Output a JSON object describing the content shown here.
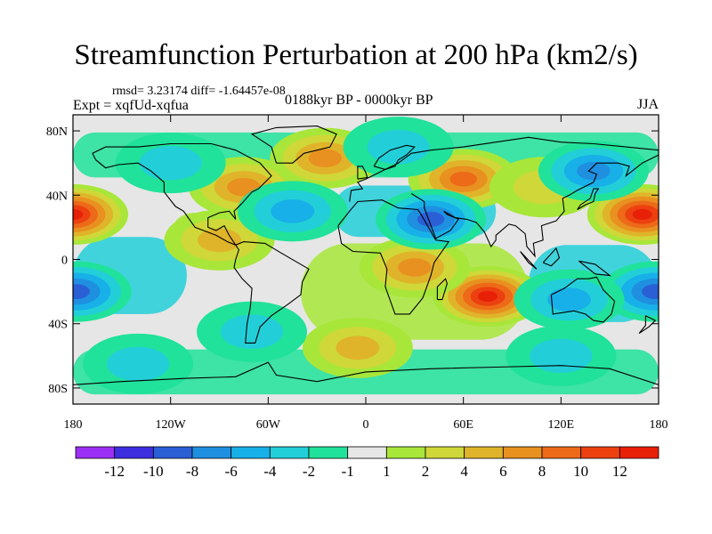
{
  "chart_data": {
    "type": "heatmap",
    "title": "Streamfunction Perturbation at 200 hPa (km2/s)",
    "stats_text": "rmsd= 3.23174 diff= -1.64457e-08",
    "experiment_text": "Expt = xqfUd-xqfua",
    "period_text": "0188kyr BP - 0000kyr BP",
    "season_text": "JJA",
    "x_ticks": [
      "180",
      "120W",
      "60W",
      "0",
      "60E",
      "120E",
      "180"
    ],
    "y_ticks": [
      "80N",
      "40N",
      "0",
      "40S",
      "80S"
    ],
    "xlim": [
      -180,
      180
    ],
    "ylim": [
      -90,
      90
    ],
    "colorbar": {
      "labels": [
        "-12",
        "-10",
        "-8",
        "-6",
        "-4",
        "-2",
        "-1",
        "1",
        "2",
        "4",
        "6",
        "8",
        "10",
        "12"
      ],
      "colors": [
        "#9b30f5",
        "#3d2ee0",
        "#2a5fd6",
        "#1f8fe0",
        "#18b0e8",
        "#22cfd8",
        "#20e29a",
        "#e6e6e6",
        "#a8e63a",
        "#cfd838",
        "#e0b42a",
        "#e89020",
        "#ec6a18",
        "#ec4010",
        "#e82008"
      ]
    },
    "anomaly_centers": [
      {
        "lon": -180,
        "lat": 28,
        "level": 13
      },
      {
        "lon": 170,
        "lat": 28,
        "level": 13
      },
      {
        "lon": 75,
        "lat": -23,
        "level": 13
      },
      {
        "lon": -75,
        "lat": 45,
        "level": 10
      },
      {
        "lon": -25,
        "lat": 63,
        "level": 10
      },
      {
        "lon": 60,
        "lat": 50,
        "level": 11
      },
      {
        "lon": 30,
        "lat": -5,
        "level": 10
      },
      {
        "lon": -5,
        "lat": -55,
        "level": 9
      },
      {
        "lon": -90,
        "lat": 12,
        "level": 9
      },
      {
        "lon": 110,
        "lat": 45,
        "level": 8
      },
      {
        "lon": 40,
        "lat": 25,
        "level": 3
      },
      {
        "lon": -45,
        "lat": 30,
        "level": 5
      },
      {
        "lon": 140,
        "lat": 55,
        "level": 4
      },
      {
        "lon": -178,
        "lat": -20,
        "level": 3
      },
      {
        "lon": 178,
        "lat": -20,
        "level": 3
      },
      {
        "lon": 125,
        "lat": -25,
        "level": 5
      },
      {
        "lon": -120,
        "lat": 60,
        "level": 6
      },
      {
        "lon": 20,
        "lat": 70,
        "level": 6
      },
      {
        "lon": -140,
        "lat": -65,
        "level": 6
      },
      {
        "lon": 120,
        "lat": -60,
        "level": 6
      },
      {
        "lon": -70,
        "lat": -45,
        "level": 6
      }
    ]
  }
}
